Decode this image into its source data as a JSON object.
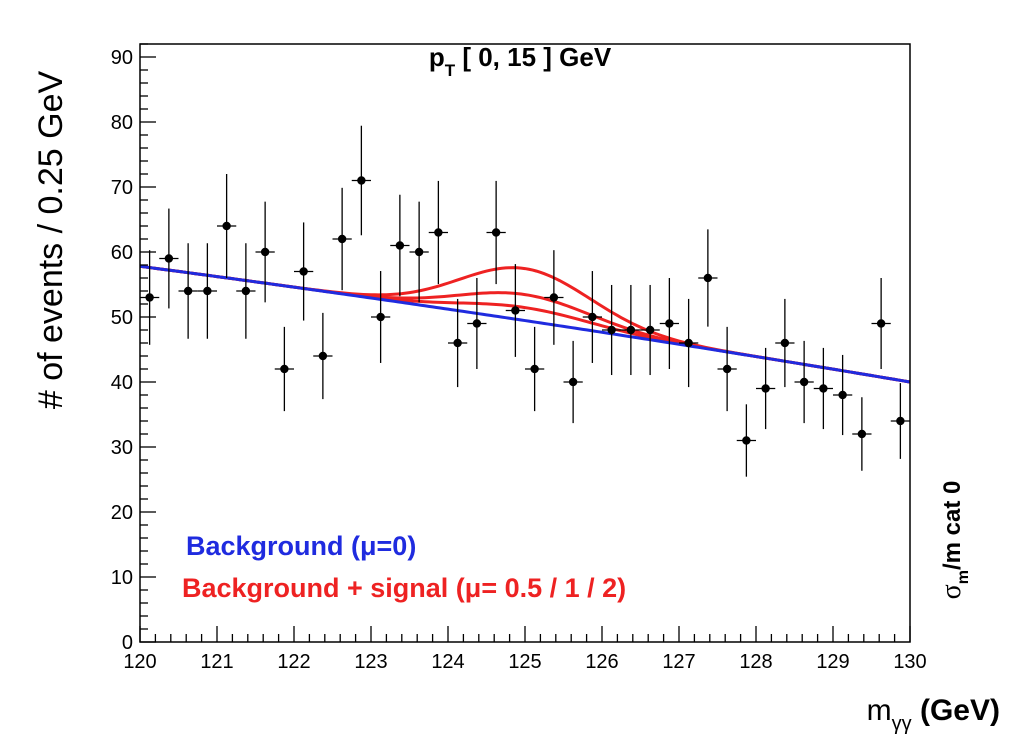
{
  "chart_data": {
    "type": "scatter",
    "title_main": "p",
    "title_sub": "T",
    "title_rest": " [ 0, 15 ] GeV",
    "ylabel": "# of events / 0.25 GeV",
    "xlabel_main": "m",
    "xlabel_sub": "γγ",
    "xlabel_rest": " (GeV)",
    "side_label_sigma": "σ",
    "side_label_sub": "m",
    "side_label_rest": "/m cat 0",
    "xlim": [
      120,
      130
    ],
    "ylim": [
      0,
      92
    ],
    "x_ticks": [
      {
        "value": 120,
        "label": "120"
      },
      {
        "value": 121,
        "label": "121"
      },
      {
        "value": 122,
        "label": "122"
      },
      {
        "value": 123,
        "label": "123"
      },
      {
        "value": 124,
        "label": "124"
      },
      {
        "value": 125,
        "label": "125"
      },
      {
        "value": 126,
        "label": "126"
      },
      {
        "value": 127,
        "label": "127"
      },
      {
        "value": 128,
        "label": "128"
      },
      {
        "value": 129,
        "label": "129"
      },
      {
        "value": 130,
        "label": "130"
      }
    ],
    "y_ticks": [
      {
        "value": 0,
        "label": "0"
      },
      {
        "value": 10,
        "label": "10"
      },
      {
        "value": 20,
        "label": "20"
      },
      {
        "value": 30,
        "label": "30"
      },
      {
        "value": 40,
        "label": "40"
      },
      {
        "value": 50,
        "label": "50"
      },
      {
        "value": 60,
        "label": "60"
      },
      {
        "value": 70,
        "label": "70"
      },
      {
        "value": 80,
        "label": "80"
      },
      {
        "value": 90,
        "label": "90"
      }
    ],
    "bin_width": 0.25,
    "data_points": {
      "name": "Data",
      "x": [
        120.125,
        120.375,
        120.625,
        120.875,
        121.125,
        121.375,
        121.625,
        121.875,
        122.125,
        122.375,
        122.625,
        122.875,
        123.125,
        123.375,
        123.625,
        123.875,
        124.125,
        124.375,
        124.625,
        124.875,
        125.125,
        125.375,
        125.625,
        125.875,
        126.125,
        126.375,
        126.625,
        126.875,
        127.125,
        127.375,
        127.625,
        127.875,
        128.125,
        128.375,
        128.625,
        128.875,
        129.125,
        129.375,
        129.625,
        129.875
      ],
      "y": [
        53,
        59,
        54,
        54,
        64,
        54,
        60,
        42,
        57,
        44,
        62,
        71,
        50,
        61,
        60,
        63,
        46,
        49,
        63,
        51,
        42,
        53,
        40,
        50,
        48,
        48,
        48,
        49,
        46,
        56,
        42,
        31,
        39,
        46,
        40,
        39,
        38,
        32,
        49,
        34
      ]
    },
    "series": [
      {
        "name": "Background (μ=0)",
        "color": "#1f2bdf",
        "mu": 0
      },
      {
        "name": "",
        "color": "#ee2222",
        "mu": 0.5
      },
      {
        "name": "",
        "color": "#ee2222",
        "mu": 1
      },
      {
        "name": "",
        "color": "#ee2222",
        "mu": 2
      }
    ],
    "background_model": {
      "y_at_120": 57.8,
      "y_at_130": 40.0,
      "curvature": 2.2
    },
    "signal_model": {
      "mean": 125.0,
      "sigma": 0.85,
      "peak_mu1": 4.0
    },
    "legend": [
      {
        "label": "Background (μ=0)",
        "color": "#1f2bdf"
      },
      {
        "label": "Background + signal (μ= 0.5 / 1 / 2)",
        "color": "#ee2222"
      }
    ],
    "legend_position": "bottom-left",
    "grid": false
  }
}
